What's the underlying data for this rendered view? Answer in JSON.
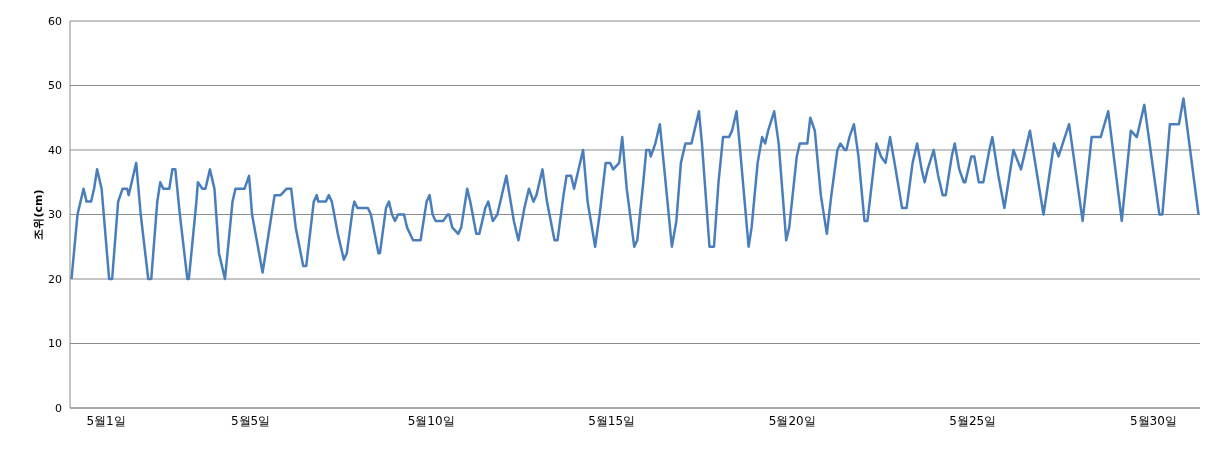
{
  "chart_data": {
    "type": "line",
    "ylabel": "조위(cm)",
    "x": [
      "--04-30T01:00",
      "--04-30T05:00",
      "--04-30T09:00",
      "--04-30T11:00",
      "--04-30T14:00",
      "--04-30T16:00",
      "--04-30T18:00",
      "--04-30T21:00",
      "--05-01T02:00",
      "--05-01T04:00",
      "--05-01T08:00",
      "--05-01T11:00",
      "--05-01T14:00",
      "--05-01T15:00",
      "--05-01T17:00",
      "--05-01T20:00",
      "--05-01T23:00",
      "--05-02T04:00",
      "--05-02T06:00",
      "--05-02T10:00",
      "--05-02T12:00",
      "--05-02T14:00",
      "--05-02T18:00",
      "--05-02T20:00",
      "--05-02T22:00",
      "--05-03T01:00",
      "--05-03T06:00",
      "--05-03T07:00",
      "--05-03T12:00",
      "--05-03T13:00",
      "--05-03T16:00",
      "--05-03T18:00",
      "--05-03T21:00",
      "--05-04T00:00",
      "--05-04T03:00",
      "--05-04T07:00",
      "--05-04T12:00",
      "--05-04T14:00",
      "--05-04T20:00",
      "--05-04T23:00",
      "--05-05T01:00",
      "--05-05T08:00",
      "--05-05T16:00",
      "--05-05T20:00",
      "--05-06T00:00",
      "--05-06T03:00",
      "--05-06T06:00",
      "--05-06T11:00",
      "--05-06T13:00",
      "--05-06T18:00",
      "--05-06T20:00",
      "--05-06T21:00",
      "--05-07T02:00",
      "--05-07T04:00",
      "--05-07T06:00",
      "--05-07T10:00",
      "--05-07T14:00",
      "--05-07T16:00",
      "--05-07T20:00",
      "--05-07T21:00",
      "--05-07T23:00",
      "--05-08T06:00",
      "--05-08T08:00",
      "--05-08T13:00",
      "--05-08T14:00",
      "--05-08T18:00",
      "--05-08T20:00",
      "--05-08T22:00",
      "--05-09T00:00",
      "--05-09T02:00",
      "--05-09T06:00",
      "--05-09T08:00",
      "--05-09T12:00",
      "--05-09T17:00",
      "--05-09T21:00",
      "--05-09T23:00",
      "--05-10T01:00",
      "--05-10T03:00",
      "--05-10T08:00",
      "--05-10T11:00",
      "--05-10T12:00",
      "--05-10T14:00",
      "--05-10T18:00",
      "--05-10T20:00",
      "--05-11T00:00",
      "--05-11T02:00",
      "--05-11T06:00",
      "--05-11T08:00",
      "--05-11T12:00",
      "--05-11T14:00",
      "--05-11T17:00",
      "--05-11T20:00",
      "--05-12T02:00",
      "--05-12T07:00",
      "--05-12T10:00",
      "--05-12T14:00",
      "--05-12T17:00",
      "--05-12T20:00",
      "--05-12T22:00",
      "--05-13T02:00",
      "--05-13T05:00",
      "--05-13T10:00",
      "--05-13T12:00",
      "--05-13T16:00",
      "--05-13T18:00",
      "--05-13T21:00",
      "--05-13T23:00",
      "--05-14T01:00",
      "--05-14T05:00",
      "--05-14T08:00",
      "--05-14T13:00",
      "--05-14T16:00",
      "--05-14T20:00",
      "--05-14T23:00",
      "--05-15T01:00",
      "--05-15T05:00",
      "--05-15T07:00",
      "--05-15T10:00",
      "--05-15T15:00",
      "--05-15T17:00",
      "--05-15T21:00",
      "--05-15T23:00",
      "--05-16T01:00",
      "--05-16T02:00",
      "--05-16T05:00",
      "--05-16T08:00",
      "--05-16T11:00",
      "--05-16T16:00",
      "--05-16T19:00",
      "--05-16T22:00",
      "--05-17T01:00",
      "--05-17T05:00",
      "--05-17T06:00",
      "--05-17T10:00",
      "--05-17T12:00",
      "--05-17T17:00",
      "--05-17T20:00",
      "--05-17T23:00",
      "--05-18T02:00",
      "--05-18T06:00",
      "--05-18T08:00",
      "--05-18T11:00",
      "--05-18T13:00",
      "--05-18T19:00",
      "--05-18T21:00",
      "--05-19T01:00",
      "--05-19T04:00",
      "--05-19T06:00",
      "--05-19T08:00",
      "--05-19T12:00",
      "--05-19T15:00",
      "--05-19T20:00",
      "--05-19T22:00",
      "--05-20T03:00",
      "--05-20T05:00",
      "--05-20T10:00",
      "--05-20T12:00",
      "--05-20T15:00",
      "--05-20T19:00",
      "--05-20T23:00",
      "--05-21T02:00",
      "--05-21T06:00",
      "--05-21T08:00",
      "--05-21T11:00",
      "--05-21T12:00",
      "--05-21T14:00",
      "--05-21T17:00",
      "--05-21T20:00",
      "--05-22T00:00",
      "--05-22T02:00",
      "--05-22T06:00",
      "--05-22T08:00",
      "--05-22T11:00",
      "--05-22T14:00",
      "--05-22T17:00",
      "--05-22T20:00",
      "--05-23T01:00",
      "--05-23T04:00",
      "--05-23T08:00",
      "--05-23T11:00",
      "--05-23T14:00",
      "--05-23T16:00",
      "--05-23T18:00",
      "--05-23T22:00",
      "--05-24T01:00",
      "--05-24T04:00",
      "--05-24T06:00",
      "--05-24T10:00",
      "--05-24T12:00",
      "--05-24T15:00",
      "--05-24T18:00",
      "--05-24T19:00",
      "--05-24T23:00",
      "--05-25T01:00",
      "--05-25T04:00",
      "--05-25T07:00",
      "--05-25T11:00",
      "--05-25T13:00",
      "--05-25T17:00",
      "--05-25T21:00",
      "--05-26T03:00",
      "--05-26T08:00",
      "--05-26T14:00",
      "--05-26T23:00",
      "--05-27T06:00",
      "--05-27T09:00",
      "--05-27T16:00",
      "--05-28T01:00",
      "--05-28T07:00",
      "--05-28T13:00",
      "--05-28T18:00",
      "--05-29T03:00",
      "--05-29T09:00",
      "--05-29T13:00",
      "--05-29T18:00",
      "--05-30T04:00",
      "--05-30T06:00",
      "--05-30T11:00",
      "--05-30T17:00",
      "--05-30T20:00",
      "--05-31T06:00"
    ],
    "values": [
      20,
      30,
      34,
      32,
      32,
      34,
      37,
      34,
      20,
      20,
      32,
      34,
      34,
      33,
      35,
      38,
      30,
      20,
      20,
      32,
      35,
      34,
      34,
      37,
      37,
      30,
      20,
      20,
      32,
      35,
      34,
      34,
      37,
      34,
      24,
      20,
      32,
      34,
      34,
      36,
      30,
      21,
      33,
      33,
      34,
      34,
      28,
      22,
      22,
      32,
      33,
      32,
      32,
      33,
      32,
      27,
      23,
      24,
      31,
      32,
      31,
      31,
      30,
      24,
      24,
      31,
      32,
      30,
      29,
      30,
      30,
      28,
      26,
      26,
      32,
      33,
      30,
      29,
      29,
      30,
      30,
      28,
      27,
      28,
      34,
      32,
      27,
      27,
      31,
      32,
      29,
      30,
      36,
      29,
      26,
      31,
      34,
      32,
      33,
      37,
      32,
      26,
      26,
      33,
      36,
      36,
      34,
      36,
      40,
      32,
      25,
      30,
      38,
      38,
      37,
      38,
      42,
      34,
      25,
      26,
      35,
      40,
      40,
      39,
      41,
      44,
      37,
      25,
      29,
      38,
      41,
      41,
      42,
      46,
      41,
      25,
      25,
      35,
      42,
      42,
      43,
      46,
      41,
      25,
      28,
      38,
      42,
      41,
      43,
      46,
      41,
      26,
      28,
      39,
      41,
      41,
      45,
      43,
      33,
      27,
      33,
      40,
      41,
      40,
      40,
      42,
      44,
      39,
      29,
      29,
      37,
      41,
      39,
      38,
      42,
      38,
      31,
      31,
      38,
      41,
      37,
      35,
      37,
      40,
      36,
      33,
      33,
      39,
      41,
      37,
      35,
      35,
      39,
      39,
      35,
      35,
      40,
      42,
      36,
      31,
      40,
      37,
      43,
      30,
      41,
      39,
      44,
      29,
      42,
      42,
      46,
      29,
      43,
      42,
      47,
      30,
      30,
      44,
      44,
      48,
      30
    ],
    "color": "#4a7ebb",
    "xlim": [
      "--04-30T00:00",
      "--05-31T07:00"
    ],
    "xticks": [
      {
        "value": "--05-01",
        "label": "5월1일"
      },
      {
        "value": "--05-05",
        "label": "5월5일"
      },
      {
        "value": "--05-10",
        "label": "5월10일"
      },
      {
        "value": "--05-15",
        "label": "5월15일"
      },
      {
        "value": "--05-20",
        "label": "5월20일"
      },
      {
        "value": "--05-25",
        "label": "5월25일"
      },
      {
        "value": "--05-30",
        "label": "5월30일"
      }
    ],
    "ylim": [
      0,
      60
    ],
    "yticks": [
      0,
      10,
      20,
      30,
      40,
      50,
      60
    ],
    "grid": "y"
  }
}
